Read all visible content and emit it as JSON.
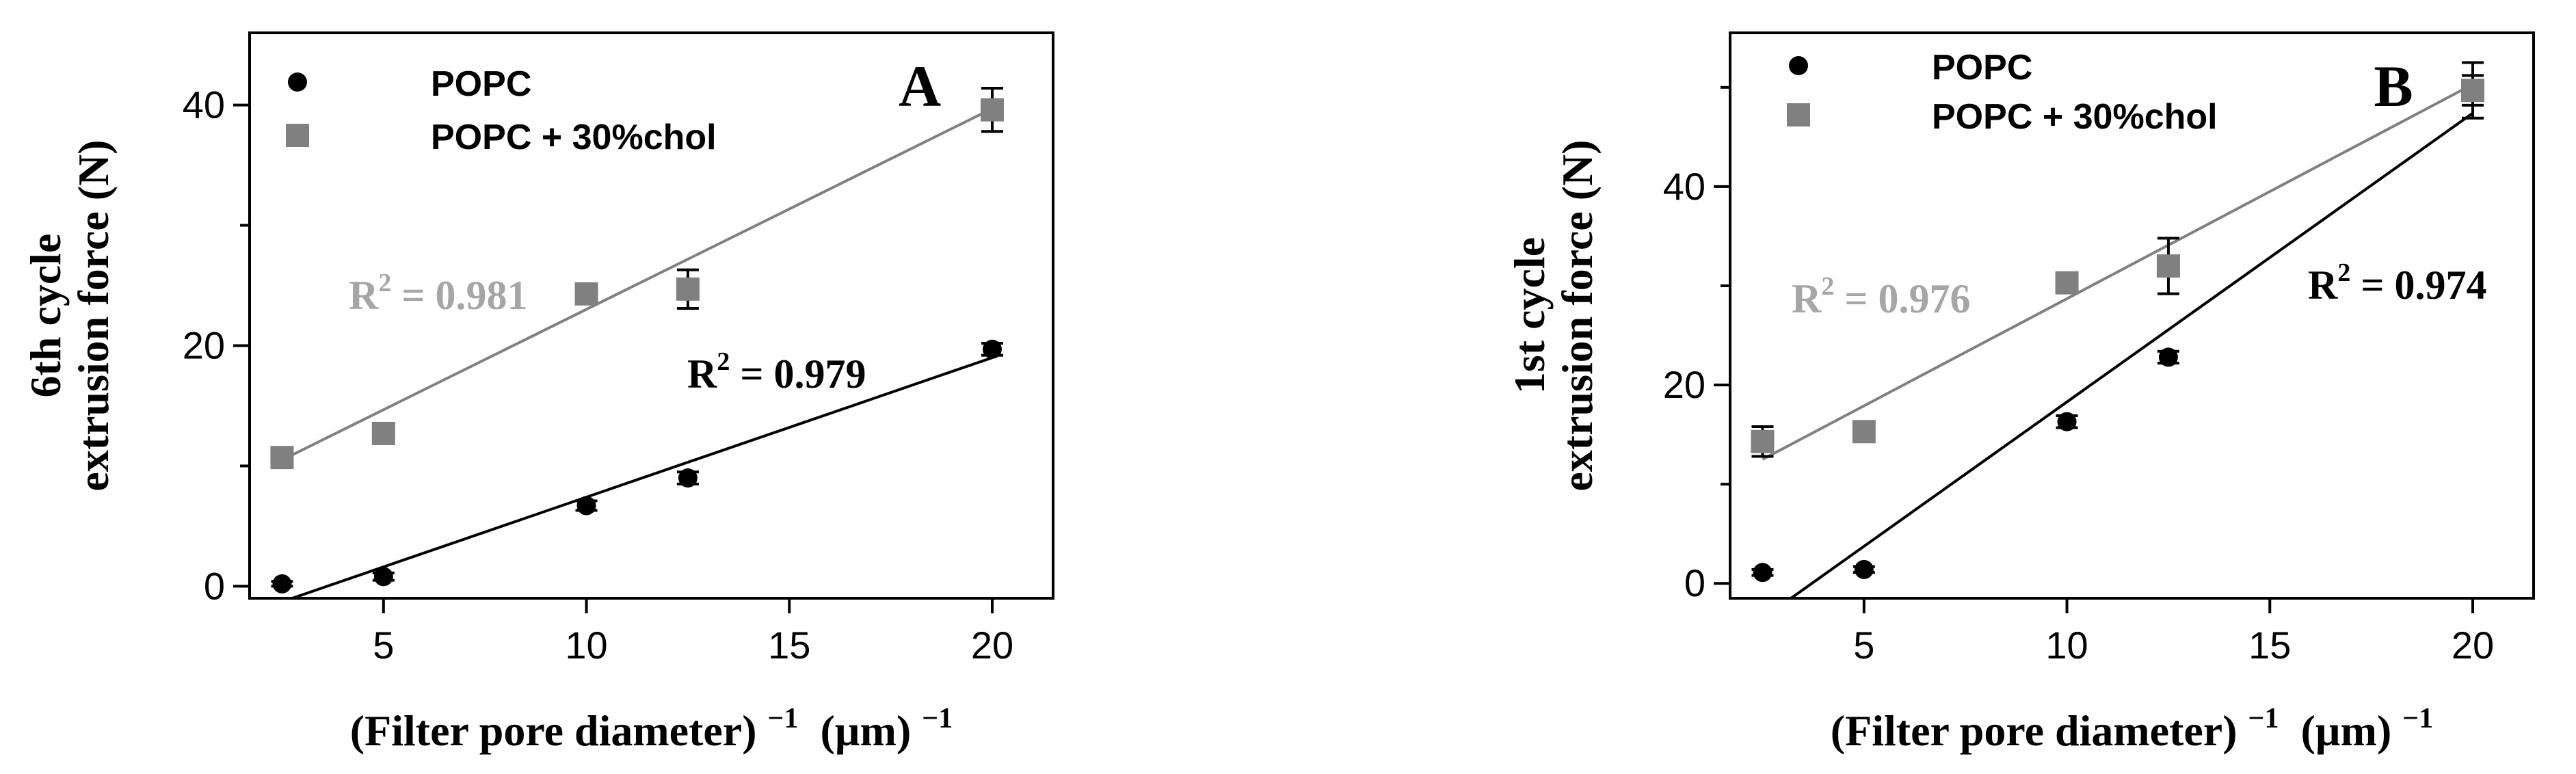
{
  "colors": {
    "popc": "#000000",
    "chol": "#808080",
    "chol_r2_text": "#a6a6a6",
    "axis": "#000000"
  },
  "chart_data": [
    {
      "type": "scatter",
      "panel_letter": "A",
      "ylabel_line1": "6th cycle",
      "ylabel_line2": "extrusion force (N)",
      "xlabel": "(Filter pore diameter) −1 (µm)−1",
      "xlabel_main": "(Filter pore diameter)",
      "xlabel_sup": "−1",
      "xlabel_unit": "(µm)",
      "xlabel_unit_sup": "−1",
      "xlim": [
        1.7,
        21.5
      ],
      "ylim": [
        -1,
        46
      ],
      "xticks": [
        5,
        10,
        15,
        20
      ],
      "xtick_labels": [
        "5",
        "10",
        "15",
        "20"
      ],
      "yticks": [
        0,
        20,
        40
      ],
      "ytick_labels": [
        "0",
        "20",
        "40"
      ],
      "yminor": [
        10,
        30
      ],
      "legend": {
        "position": "top-left",
        "entries": [
          "POPC",
          "POPC + 30%chol"
        ]
      },
      "series": [
        {
          "name": "POPC",
          "marker": "circle",
          "x": [
            2.5,
            5,
            10,
            12.5,
            20
          ],
          "y": [
            0.2,
            0.8,
            6.7,
            9.0,
            19.7
          ],
          "err": [
            0.2,
            0.3,
            0.4,
            0.5,
            0.5
          ],
          "fit": {
            "x": [
              2.75,
              20
            ],
            "y": [
              -1,
              19.0
            ]
          },
          "r2_label": "R2 = 0.979",
          "r2_main": "R",
          "r2_sup": "2",
          "r2_value": " = 0.979"
        },
        {
          "name": "POPC + 30%chol",
          "marker": "square",
          "x": [
            2.5,
            5,
            10,
            12.5,
            20
          ],
          "y": [
            10.7,
            12.7,
            24.3,
            24.7,
            39.6
          ],
          "err": [
            0.4,
            0.8,
            0.7,
            1.6,
            1.8
          ],
          "fit": {
            "x": [
              2.5,
              20
            ],
            "y": [
              10.5,
              39.7
            ]
          },
          "r2_label": "R2 = 0.981",
          "r2_main": "R",
          "r2_sup": "2",
          "r2_value": " = 0.981"
        }
      ]
    },
    {
      "type": "scatter",
      "panel_letter": "B",
      "ylabel_line1": "1st cycle",
      "ylabel_line2": "extrusion force (N)",
      "xlabel": "(Filter pore diameter) −1 (µm)−1",
      "xlabel_main": "(Filter pore diameter)",
      "xlabel_sup": "−1",
      "xlabel_unit": "(µm)",
      "xlabel_unit_sup": "−1",
      "xlim": [
        1.7,
        21.5
      ],
      "ylim": [
        -1.5,
        55.5
      ],
      "xticks": [
        5,
        10,
        15,
        20
      ],
      "xtick_labels": [
        "5",
        "10",
        "15",
        "20"
      ],
      "yticks": [
        0,
        20,
        40
      ],
      "ytick_labels": [
        "0",
        "20",
        "40"
      ],
      "yminor": [
        10,
        30,
        50
      ],
      "legend": {
        "position": "top-left",
        "entries": [
          "POPC",
          "POPC + 30%chol"
        ]
      },
      "series": [
        {
          "name": "POPC",
          "marker": "circle",
          "x": [
            2.5,
            5,
            10,
            12.5,
            20
          ],
          "y": [
            1.1,
            1.4,
            16.3,
            22.8,
            49.7
          ],
          "err": [
            0.3,
            0.3,
            0.6,
            0.6,
            1.5
          ],
          "fit": {
            "x": [
              3.2,
              20
            ],
            "y": [
              -1.5,
              47.4
            ]
          },
          "r2_label": "R2 = 0.974",
          "r2_main": "R",
          "r2_sup": "2",
          "r2_value": " = 0.974"
        },
        {
          "name": "POPC + 30%chol",
          "marker": "square",
          "x": [
            2.5,
            5,
            10,
            12.5,
            20
          ],
          "y": [
            14.3,
            15.3,
            30.3,
            32.0,
            49.7
          ],
          "err": [
            1.5,
            1.0,
            0.8,
            2.8,
            2.8
          ],
          "fit": {
            "x": [
              2.5,
              20
            ],
            "y": [
              12.5,
              50.3
            ]
          },
          "r2_label": "R2 = 0.976",
          "r2_main": "R",
          "r2_sup": "2",
          "r2_value": " = 0.976"
        }
      ]
    }
  ]
}
